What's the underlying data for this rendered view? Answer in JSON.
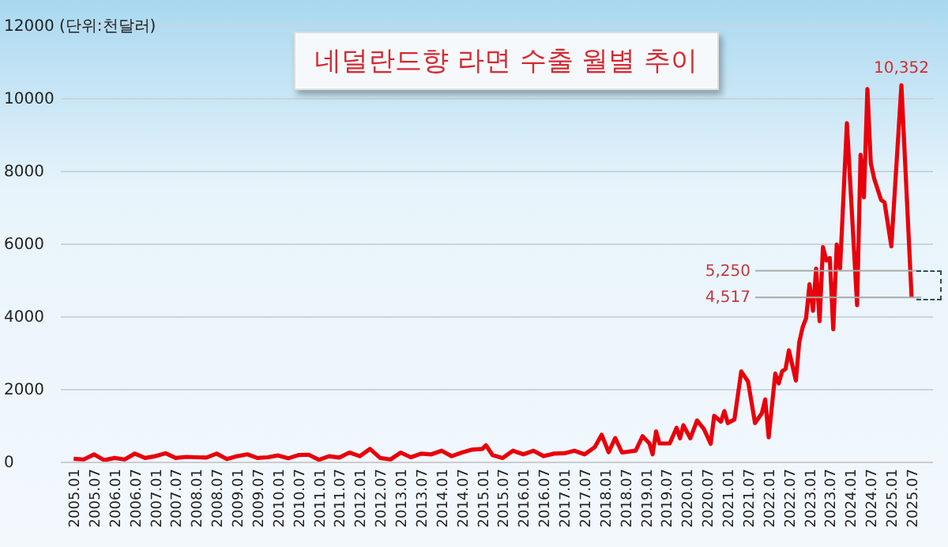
{
  "chart_data": {
    "type": "line",
    "title": "네덜란드향 라면 수출 월별 추이",
    "x": [
      "2005-01",
      "2005-04",
      "2005-07",
      "2005-10",
      "2006-01",
      "2006-04",
      "2006-07",
      "2006-10",
      "2007-01",
      "2007-04",
      "2007-07",
      "2007-10",
      "2008-01",
      "2008-04",
      "2008-07",
      "2008-10",
      "2009-01",
      "2009-04",
      "2009-07",
      "2009-10",
      "2010-01",
      "2010-04",
      "2010-07",
      "2010-10",
      "2011-01",
      "2011-04",
      "2011-07",
      "2011-10",
      "2012-01",
      "2012-04",
      "2012-07",
      "2012-10",
      "2013-01",
      "2013-04",
      "2013-07",
      "2013-10",
      "2014-01",
      "2014-04",
      "2014-07",
      "2014-10",
      "2015-01",
      "2015-02",
      "2015-04",
      "2015-07",
      "2015-10",
      "2016-01",
      "2016-04",
      "2016-07",
      "2016-10",
      "2017-01",
      "2017-04",
      "2017-07",
      "2017-10",
      "2017-12",
      "2018-02",
      "2018-04",
      "2018-06",
      "2018-10",
      "2018-12",
      "2019-02",
      "2019-03",
      "2019-04",
      "2019-05",
      "2019-08",
      "2019-10",
      "2019-11",
      "2019-12",
      "2020-02",
      "2020-04",
      "2020-06",
      "2020-08",
      "2020-09",
      "2020-11",
      "2020-12",
      "2021-01",
      "2021-03",
      "2021-05",
      "2021-07",
      "2021-09",
      "2021-11",
      "2021-12",
      "2022-01",
      "2022-03",
      "2022-04",
      "2022-05",
      "2022-06",
      "2022-07",
      "2022-09",
      "2022-10",
      "2022-11",
      "2022-12",
      "2023-01",
      "2023-02",
      "2023-03",
      "2023-04",
      "2023-05",
      "2023-06",
      "2023-07",
      "2023-08",
      "2023-09",
      "2023-10",
      "2023-12",
      "2024-03",
      "2024-04",
      "2024-05",
      "2024-06",
      "2024-07",
      "2024-08",
      "2024-10",
      "2024-11",
      "2025-01",
      "2025-04",
      "2025-07"
    ],
    "series": [
      {
        "color": "#e8000b",
        "values": [
          80,
          60,
          200,
          40,
          100,
          60,
          220,
          100,
          150,
          230,
          100,
          130,
          120,
          110,
          220,
          70,
          150,
          200,
          100,
          120,
          170,
          90,
          180,
          190,
          50,
          150,
          110,
          250,
          150,
          350,
          100,
          60,
          250,
          120,
          220,
          200,
          300,
          150,
          250,
          330,
          350,
          450,
          180,
          100,
          300,
          200,
          300,
          150,
          220,
          230,
          300,
          200,
          400,
          740,
          260,
          650,
          250,
          300,
          700,
          500,
          200,
          830,
          500,
          500,
          930,
          640,
          1000,
          640,
          1130,
          900,
          490,
          1260,
          1100,
          1390,
          1060,
          1160,
          2480,
          2200,
          1060,
          1330,
          1710,
          670,
          2420,
          2150,
          2480,
          2550,
          3060,
          2230,
          3280,
          3700,
          3940,
          4880,
          4150,
          5310,
          3860,
          5900,
          5530,
          5600,
          3640,
          5970,
          5310,
          9310,
          4300,
          8440,
          7270,
          10250,
          8220,
          7780,
          7200,
          7130,
          5920,
          10352,
          4517
        ]
      }
    ],
    "xlim": [
      "2004-09",
      "2026-01"
    ],
    "xticks": [
      {
        "value": "2005-01",
        "label": "2005.01"
      },
      {
        "value": "2005-07",
        "label": "2005.07"
      },
      {
        "value": "2006-01",
        "label": "2006.01"
      },
      {
        "value": "2006-07",
        "label": "2006.07"
      },
      {
        "value": "2007-01",
        "label": "2007.01"
      },
      {
        "value": "2007-07",
        "label": "2007.07"
      },
      {
        "value": "2008-01",
        "label": "2008.01"
      },
      {
        "value": "2008-07",
        "label": "2008.07"
      },
      {
        "value": "2009-01",
        "label": "2009.01"
      },
      {
        "value": "2009-07",
        "label": "2009.07"
      },
      {
        "value": "2010-01",
        "label": "2010.01"
      },
      {
        "value": "2010-07",
        "label": "2010.07"
      },
      {
        "value": "2011-01",
        "label": "2011.01"
      },
      {
        "value": "2011-07",
        "label": "2011.07"
      },
      {
        "value": "2012-01",
        "label": "2012.01"
      },
      {
        "value": "2012-07",
        "label": "2012.07"
      },
      {
        "value": "2013-01",
        "label": "2013.01"
      },
      {
        "value": "2013-07",
        "label": "2013.07"
      },
      {
        "value": "2014-01",
        "label": "2014.01"
      },
      {
        "value": "2014-07",
        "label": "2014.07"
      },
      {
        "value": "2015-01",
        "label": "2015.01"
      },
      {
        "value": "2015-07",
        "label": "2015.07"
      },
      {
        "value": "2016-01",
        "label": "2016.01"
      },
      {
        "value": "2016-07",
        "label": "2016.07"
      },
      {
        "value": "2017-01",
        "label": "2017.01"
      },
      {
        "value": "2017-07",
        "label": "2017.07"
      },
      {
        "value": "2018-01",
        "label": "2018.01"
      },
      {
        "value": "2018-07",
        "label": "2018.07"
      },
      {
        "value": "2019-01",
        "label": "2019.01"
      },
      {
        "value": "2019-07",
        "label": "2019.07"
      },
      {
        "value": "2020-01",
        "label": "2020.01"
      },
      {
        "value": "2020-07",
        "label": "2020.07"
      },
      {
        "value": "2021-01",
        "label": "2021.01"
      },
      {
        "value": "2021-07",
        "label": "2021.07"
      },
      {
        "value": "2022-01",
        "label": "2022.01"
      },
      {
        "value": "2022-07",
        "label": "2022.07"
      },
      {
        "value": "2023-01",
        "label": "2023.01"
      },
      {
        "value": "2023-07",
        "label": "2023.07"
      },
      {
        "value": "2024-01",
        "label": "2024.01"
      },
      {
        "value": "2024-07",
        "label": "2024.07"
      },
      {
        "value": "2025-01",
        "label": "2025.01"
      },
      {
        "value": "2025-07",
        "label": "2025.07"
      }
    ],
    "ylim": [
      0,
      12000
    ],
    "yticks": [
      0,
      2000,
      4000,
      6000,
      8000,
      10000,
      {
        "value": 12000,
        "label": "12000 (단위:천달러)"
      }
    ],
    "grid": "y",
    "annotations": [
      {
        "text": "10,352",
        "x": "2025-04",
        "y": 10352
      }
    ],
    "ref_lines": [
      {
        "axis": "y",
        "value": 5250,
        "label": "5,250",
        "color": "#a9a9a9"
      },
      {
        "axis": "y",
        "value": 4517,
        "label": "4,517",
        "color": "#a9a9a9"
      }
    ]
  }
}
